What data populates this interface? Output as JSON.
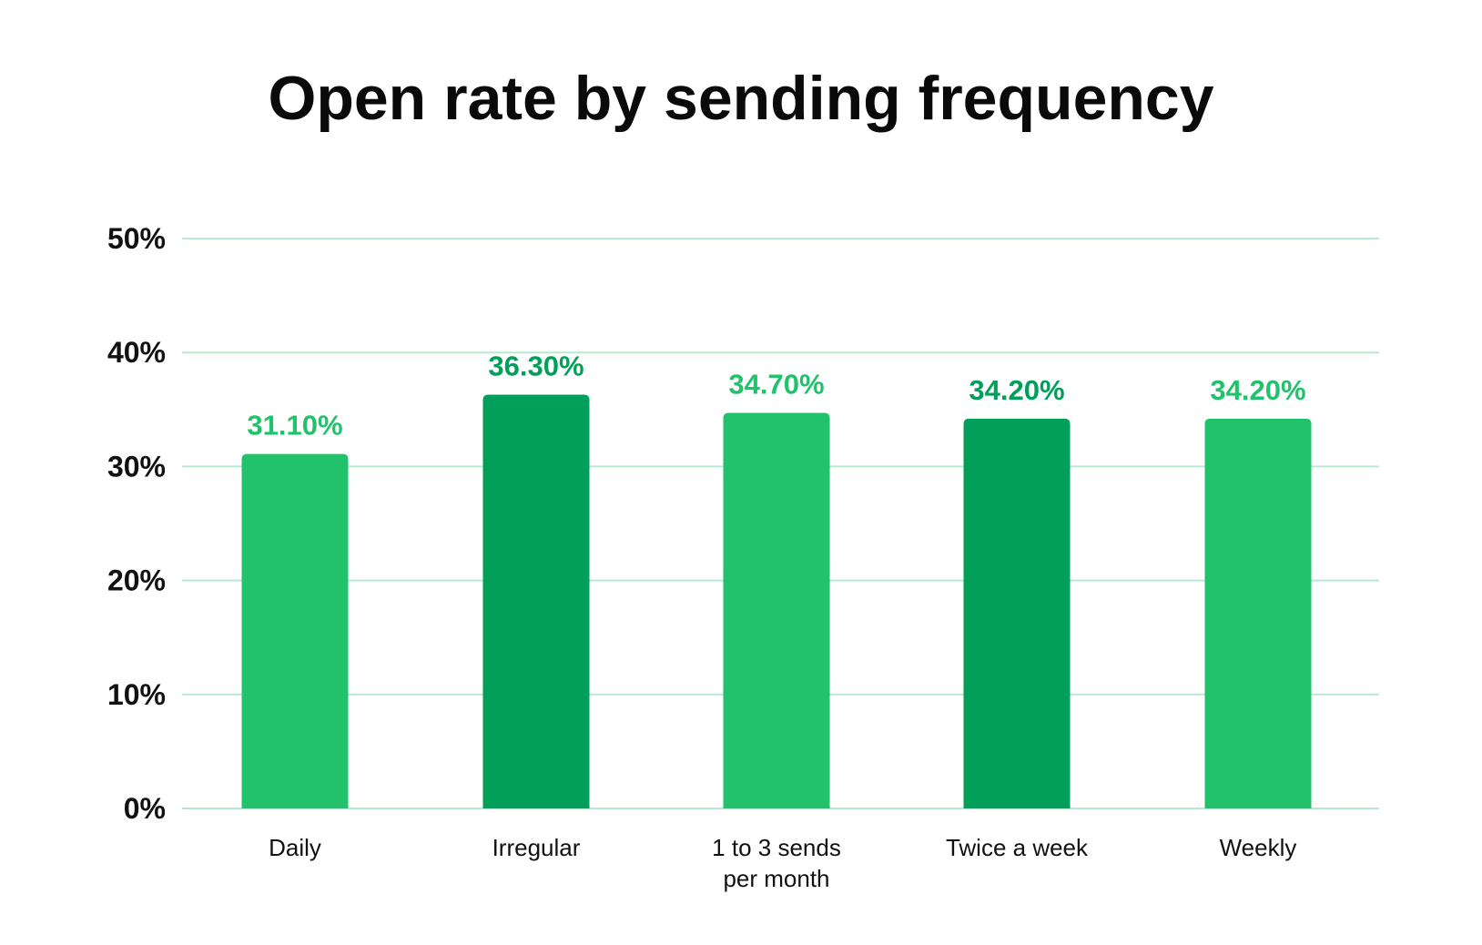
{
  "chart_data": {
    "type": "bar",
    "title": "Open rate by sending frequency",
    "xlabel": "",
    "ylabel": "",
    "categories": [
      "Daily",
      "Irregular",
      "1 to 3 sends per month",
      "Twice a week",
      "Weekly"
    ],
    "category_lines": [
      [
        "Daily"
      ],
      [
        "Irregular"
      ],
      [
        "1 to 3 sends",
        "per month"
      ],
      [
        "Twice a week"
      ],
      [
        "Weekly"
      ]
    ],
    "values": [
      31.1,
      36.3,
      34.7,
      34.2,
      34.2
    ],
    "value_labels": [
      "31.10%",
      "36.30%",
      "34.70%",
      "34.20%",
      "34.20%"
    ],
    "ylim": [
      0,
      50
    ],
    "yticks": [
      0,
      10,
      20,
      30,
      40,
      50
    ],
    "ytick_labels": [
      "0%",
      "10%",
      "20%",
      "30%",
      "40%",
      "50%"
    ],
    "grid": true,
    "legend": "none",
    "bar_colors": [
      "#22c16b",
      "#019f59",
      "#22c16b",
      "#019f59",
      "#22c16b"
    ],
    "label_colors": [
      "#22c16b",
      "#019f59",
      "#22c16b",
      "#019f59",
      "#22c16b"
    ],
    "grid_color": "#b8ead2"
  }
}
